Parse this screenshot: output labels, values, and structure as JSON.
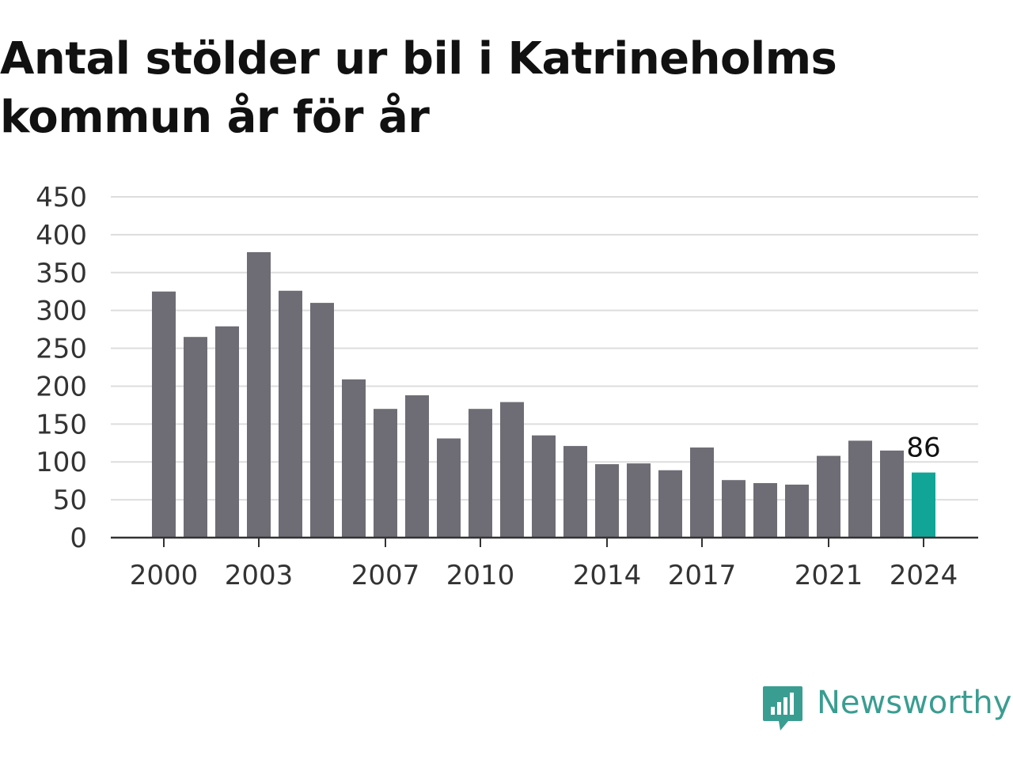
{
  "title": "Antal stölder ur bil i Katrineholms kommun år för år",
  "brand": {
    "name": "Newsworthy",
    "color": "#3a9d91"
  },
  "colors": {
    "bar": "#6e6d75",
    "highlight": "#11a598",
    "grid": "#dddddd",
    "axis": "#333333"
  },
  "chart_data": {
    "type": "bar",
    "title": "Antal stölder ur bil i Katrineholms kommun år för år",
    "xlabel": "",
    "ylabel": "",
    "categories": [
      "2000",
      "2001",
      "2002",
      "2003",
      "2004",
      "2005",
      "2006",
      "2007",
      "2008",
      "2009",
      "2010",
      "2011",
      "2012",
      "2013",
      "2014",
      "2015",
      "2016",
      "2017",
      "2018",
      "2019",
      "2020",
      "2021",
      "2022",
      "2023",
      "2024"
    ],
    "values": [
      325,
      265,
      279,
      377,
      326,
      310,
      209,
      170,
      188,
      131,
      170,
      179,
      135,
      121,
      97,
      98,
      89,
      119,
      76,
      72,
      70,
      108,
      128,
      115,
      86
    ],
    "highlight_index": 24,
    "highlight_label": "86",
    "x_tick_labels": [
      "2000",
      "2003",
      "2007",
      "2010",
      "2014",
      "2017",
      "2021",
      "2024"
    ],
    "y_ticks": [
      "0",
      "50",
      "100",
      "150",
      "200",
      "250",
      "300",
      "350",
      "400",
      "450"
    ],
    "ylim": [
      0,
      450
    ],
    "grid": true,
    "legend": "none"
  }
}
